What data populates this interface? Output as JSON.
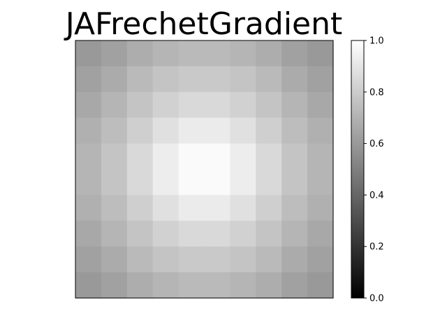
{
  "chart_data": {
    "type": "heatmap",
    "title": "JAFrechetGradient",
    "xlabel": "",
    "ylabel": "",
    "colormap": "gray",
    "colormap_colors": [
      "#000000",
      "#ffffff"
    ],
    "value_range": [
      0.0,
      1.0
    ],
    "rows": 10,
    "cols": 10,
    "values": [
      [
        0.6,
        0.63,
        0.68,
        0.71,
        0.73,
        0.73,
        0.71,
        0.68,
        0.63,
        0.6
      ],
      [
        0.63,
        0.67,
        0.73,
        0.77,
        0.79,
        0.79,
        0.77,
        0.73,
        0.67,
        0.63
      ],
      [
        0.66,
        0.71,
        0.77,
        0.82,
        0.85,
        0.85,
        0.82,
        0.77,
        0.71,
        0.66
      ],
      [
        0.69,
        0.74,
        0.81,
        0.88,
        0.92,
        0.92,
        0.88,
        0.81,
        0.74,
        0.69
      ],
      [
        0.71,
        0.77,
        0.85,
        0.93,
        0.98,
        0.98,
        0.93,
        0.85,
        0.77,
        0.71
      ],
      [
        0.71,
        0.77,
        0.85,
        0.93,
        0.98,
        0.98,
        0.93,
        0.85,
        0.77,
        0.71
      ],
      [
        0.69,
        0.74,
        0.81,
        0.88,
        0.92,
        0.92,
        0.88,
        0.81,
        0.74,
        0.69
      ],
      [
        0.66,
        0.71,
        0.77,
        0.82,
        0.85,
        0.85,
        0.82,
        0.77,
        0.71,
        0.66
      ],
      [
        0.63,
        0.67,
        0.73,
        0.77,
        0.79,
        0.79,
        0.77,
        0.73,
        0.67,
        0.63
      ],
      [
        0.6,
        0.63,
        0.68,
        0.71,
        0.73,
        0.73,
        0.71,
        0.68,
        0.63,
        0.6
      ]
    ],
    "colorbar": {
      "ticks": [
        0.0,
        0.2,
        0.4,
        0.6,
        0.8,
        1.0
      ],
      "tick_labels": [
        "0.0",
        "0.2",
        "0.4",
        "0.6",
        "0.8",
        "1.0"
      ]
    },
    "x_ticks_visible": false,
    "y_ticks_visible": false,
    "grid": false
  }
}
